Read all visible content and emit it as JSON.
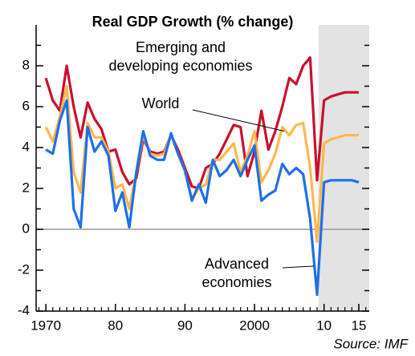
{
  "chart_data": {
    "type": "line",
    "title": "Real GDP Growth (% change)",
    "source": "Source: IMF",
    "x": [
      1970,
      1971,
      1972,
      1973,
      1974,
      1975,
      1976,
      1977,
      1978,
      1979,
      1980,
      1981,
      1982,
      1983,
      1984,
      1985,
      1986,
      1987,
      1988,
      1989,
      1990,
      1991,
      1992,
      1993,
      1994,
      1995,
      1996,
      1997,
      1998,
      1999,
      2000,
      2001,
      2002,
      2003,
      2004,
      2005,
      2006,
      2007,
      2008,
      2009,
      2010,
      2011,
      2012,
      2013,
      2014,
      2015
    ],
    "series": [
      {
        "name": [
          "Emerging and",
          "developing economies"
        ],
        "color": "#c8102e",
        "values": [
          7.4,
          6.3,
          5.8,
          8.0,
          6.0,
          4.5,
          6.2,
          5.4,
          4.9,
          3.8,
          3.9,
          2.8,
          2.2,
          2.5,
          4.4,
          3.8,
          3.7,
          3.8,
          4.6,
          3.9,
          3.0,
          2.1,
          2.0,
          3.0,
          3.2,
          3.7,
          4.4,
          5.1,
          5.0,
          2.6,
          3.8,
          5.8,
          3.9,
          4.8,
          6.0,
          7.4,
          7.1,
          8.0,
          8.4,
          2.4,
          6.3,
          6.5,
          6.6,
          6.7,
          6.7,
          6.7
        ]
      },
      {
        "name": [
          "World"
        ],
        "color": "#ffb84d",
        "values": [
          5.0,
          4.3,
          5.5,
          7.0,
          2.8,
          1.8,
          5.2,
          4.5,
          4.5,
          3.8,
          2.0,
          2.2,
          1.0,
          2.8,
          4.6,
          3.7,
          3.6,
          3.7,
          4.6,
          3.7,
          2.8,
          1.5,
          2.0,
          2.2,
          3.4,
          3.4,
          3.8,
          4.2,
          2.8,
          3.6,
          4.8,
          2.3,
          2.9,
          3.7,
          5.0,
          4.6,
          5.1,
          5.2,
          3.0,
          -0.6,
          4.2,
          4.4,
          4.5,
          4.6,
          4.6,
          4.6
        ]
      },
      {
        "name": [
          "Advanced",
          "economies"
        ],
        "color": "#1f6fe8",
        "values": [
          3.9,
          3.7,
          5.3,
          6.3,
          1.0,
          0.1,
          5.0,
          3.8,
          4.3,
          3.6,
          0.9,
          1.8,
          0.1,
          2.8,
          4.8,
          3.6,
          3.4,
          3.4,
          4.7,
          3.7,
          2.9,
          1.4,
          2.2,
          1.3,
          3.4,
          2.6,
          2.9,
          3.4,
          2.6,
          3.4,
          4.1,
          1.4,
          1.7,
          1.9,
          3.2,
          2.7,
          3.0,
          2.7,
          0.5,
          -3.2,
          2.3,
          2.4,
          2.4,
          2.4,
          2.4,
          2.3
        ]
      }
    ],
    "xlim": [
      1968.6,
      2016.5
    ],
    "xticks": [
      1970,
      {
        "value": 1980,
        "label": "80"
      },
      {
        "value": 1990,
        "label": "90"
      },
      2000,
      {
        "value": 2010,
        "label": "10"
      },
      {
        "value": 2015,
        "label": "15"
      }
    ],
    "xminor_step": 1,
    "ylim": [
      -4,
      10
    ],
    "yticks": [
      -4,
      -2,
      0,
      2,
      4,
      6,
      8
    ],
    "yminor": [
      -3,
      -1,
      1,
      3,
      5,
      7,
      9
    ],
    "projection_start": 2009.2,
    "zero_line": true
  }
}
